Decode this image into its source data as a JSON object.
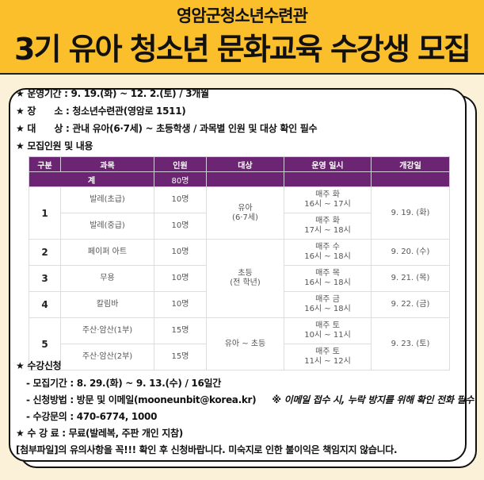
{
  "header": {
    "org": "영암군청소년수련관",
    "title": "3기 유아 청소년 문화교육 수강생 모집"
  },
  "info": {
    "period": "★ 운영기간 : 9. 19.(화) ~ 12. 2.(토) / 3개월",
    "place": "★ 장      소 : 청소년수련관(영암로 1511)",
    "target": "★ 대      상 : 관내 유아(6·7세) ~ 초등학생 / 과목별 인원 및 대상 확인 필수",
    "recruit": "★ 모집인원 및 내용"
  },
  "table": {
    "headers": [
      "구분",
      "과목",
      "인원",
      "대상",
      "운영 일시",
      "개강일"
    ],
    "total_label": "계",
    "total_count": "80명",
    "rows": [
      {
        "no": "1",
        "subject": "발레(초급)",
        "count": "10명",
        "target": "유아\n(6·7세)",
        "time": "매주 화\n16시 ~ 17시",
        "start": "9. 19. (화)"
      },
      {
        "subject": "발레(중급)",
        "count": "10명",
        "time": "매주 화\n17시 ~ 18시"
      },
      {
        "no": "2",
        "subject": "페이퍼 아트",
        "count": "10명",
        "target": "초등\n(전 학년)",
        "time": "매주 수\n16시 ~ 18시",
        "start": "9. 20. (수)"
      },
      {
        "no": "3",
        "subject": "무용",
        "count": "10명",
        "time": "매주 목\n16시 ~ 18시",
        "start": "9. 21. (목)"
      },
      {
        "no": "4",
        "subject": "칼림바",
        "count": "10명",
        "time": "매주 금\n16시 ~ 18시",
        "start": "9. 22. (금)"
      },
      {
        "no": "5",
        "subject": "주산·암산(1부)",
        "count": "15명",
        "target": "유아 ~ 초등",
        "time": "매주 토\n10시 ~ 11시",
        "start": "9. 23. (토)"
      },
      {
        "subject": "주산·암산(2부)",
        "count": "15명",
        "time": "매주 토\n11시 ~ 12시"
      }
    ]
  },
  "apply": {
    "title": "★ 수강신청",
    "period": "- 모집기간 : 8. 29.(화) ~ 9. 13.(수) / 16일간",
    "method": "- 신청방법 : 방문 및 이메일(mooneunbit@korea.kr)",
    "method_note": "※ 이메일 접수 시, 누락 방지를 위해 확인 전화 필수",
    "contact": "- 수강문의 : 470-6774, 1000"
  },
  "fee": "★ 수 강 료 : 무료(발레복, 주판 개인 지참)",
  "notice": "[첨부파일]의 유의사항을 꼭!!! 확인 후 신청바랍니다. 미숙지로 인한 불이익은 책임지지 않습니다."
}
